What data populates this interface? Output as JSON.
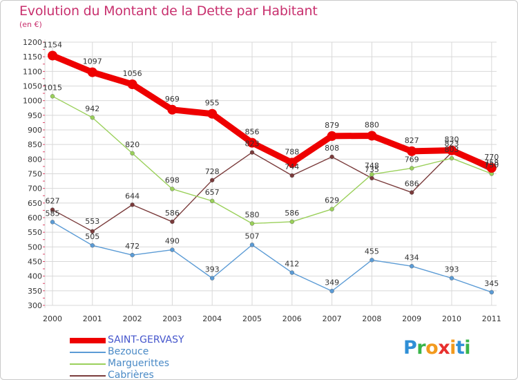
{
  "header": {
    "title": "Evolution du Montant de la Dette par Habitant",
    "subtitle": "(en €)"
  },
  "colors": {
    "title": "#c8306e",
    "grid": "#d8d8d8",
    "axis_text": "#333333",
    "value_labels": "#333333"
  },
  "logo": {
    "text": "Proxiti",
    "letter_colors": [
      "#2f8fd6",
      "#3ab54a",
      "#f29a1e",
      "#e8302e",
      "#f29a1e",
      "#2f8fd6",
      "#3ab54a"
    ]
  },
  "chart_data": {
    "type": "line",
    "title": "Evolution du Montant de la Dette par Habitant",
    "subtitle": "(en €)",
    "x": [
      "2000",
      "2001",
      "2002",
      "2003",
      "2004",
      "2005",
      "2006",
      "2007",
      "2008",
      "2009",
      "2010",
      "2011"
    ],
    "ylim": [
      300,
      1200
    ],
    "yticks": [
      300,
      350,
      400,
      450,
      500,
      550,
      600,
      650,
      700,
      750,
      800,
      850,
      900,
      950,
      1000,
      1050,
      1100,
      1150,
      1200
    ],
    "grid": true,
    "legend_position": "bottom-left",
    "series": [
      {
        "name": "SAINT-GERVASY",
        "color": "#ee0000",
        "label_color": "#4455cc",
        "emphasis": "thick",
        "values": [
          1154,
          1097,
          1056,
          969,
          955,
          856,
          788,
          879,
          880,
          827,
          830,
          770
        ]
      },
      {
        "name": "Bezouce",
        "color": "#5b9bd5",
        "label_color": "#5b9bd5",
        "emphasis": "normal",
        "values": [
          585,
          505,
          472,
          490,
          393,
          507,
          412,
          349,
          455,
          434,
          393,
          345
        ]
      },
      {
        "name": "Marguerittes",
        "color": "#9ad05a",
        "label_color": "#7ab830",
        "emphasis": "normal",
        "values": [
          1015,
          942,
          820,
          698,
          657,
          580,
          586,
          629,
          748,
          769,
          803,
          750
        ]
      },
      {
        "name": "Cabrières",
        "color": "#7a3b3b",
        "label_color": "#7a3b3b",
        "emphasis": "normal",
        "values": [
          627,
          553,
          644,
          586,
          728,
          823,
          744,
          808,
          735,
          686,
          823,
          758
        ]
      }
    ]
  }
}
